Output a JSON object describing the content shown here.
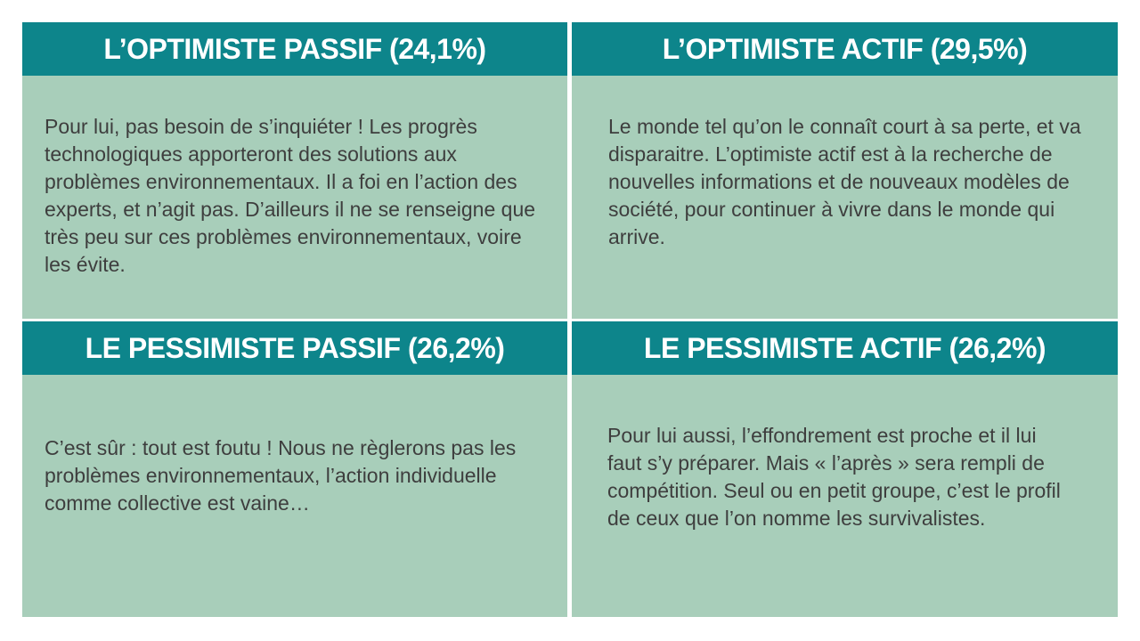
{
  "colors": {
    "page_bg": "#ffffff",
    "header_bg": "#0d858b",
    "header_text": "#ffffff",
    "body_bg": "#a8ceba",
    "body_text": "#3e3e3e"
  },
  "quadrants": [
    {
      "id": "optimiste-passif",
      "title": "L’OPTIMISTE PASSIF (24,1%)",
      "percentage": "24,1%",
      "body": "Pour lui, pas besoin de s’inquiéter ! Les progrès technologiques apporteront des solutions aux problèmes environnementaux. Il a foi en l’action des experts, et n’agit pas. D’ailleurs il ne se renseigne que très peu sur ces problèmes environnementaux, voire les évite."
    },
    {
      "id": "optimiste-actif",
      "title": "L’OPTIMISTE ACTIF (29,5%)",
      "percentage": "29,5%",
      "body": "Le monde tel qu’on le connaît court à sa perte, et va disparaitre. L’optimiste actif est à la recherche de nouvelles informations et de nouveaux modèles de société, pour continuer à vivre dans le monde qui arrive."
    },
    {
      "id": "pessimiste-passif",
      "title": "LE PESSIMISTE PASSIF (26,2%)",
      "percentage": "26,2%",
      "body": "C’est sûr : tout est foutu ! Nous ne règlerons pas les problèmes environnementaux, l’action individuelle comme collective est vaine…"
    },
    {
      "id": "pessimiste-actif",
      "title": "LE PESSIMISTE ACTIF (26,2%)",
      "percentage": "26,2%",
      "body": "Pour lui aussi, l’effondrement est proche et il lui faut s’y préparer. Mais « l’après » sera rempli de compétition. Seul ou en petit groupe, c’est le profil de ceux que l’on nomme les survivalistes."
    }
  ]
}
